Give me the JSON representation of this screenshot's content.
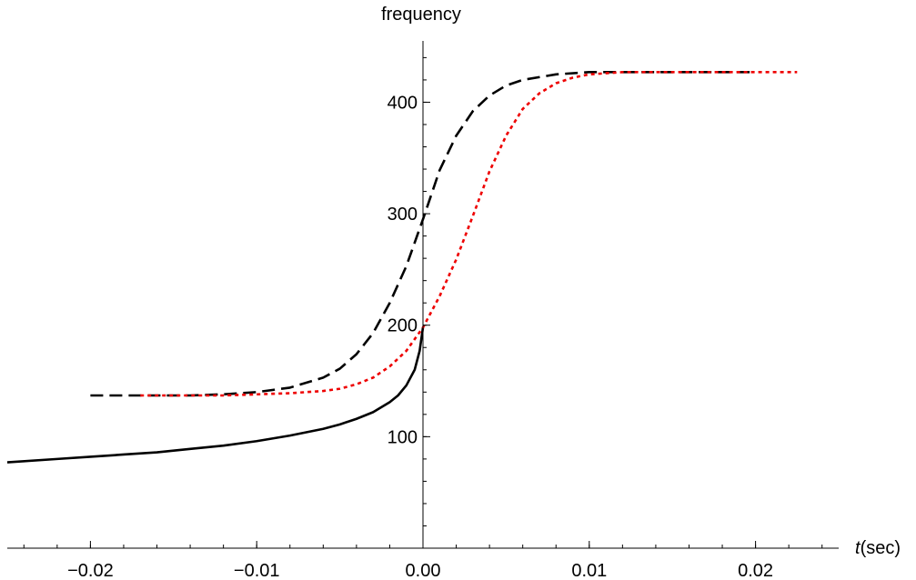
{
  "chart_data": {
    "type": "line",
    "ylabel": "frequency",
    "xlabel": {
      "var": "t",
      "unit": "(sec)"
    },
    "xlim": [
      -0.025,
      0.025
    ],
    "ylim": [
      0,
      455
    ],
    "grid": false,
    "x_ticks_major": [
      {
        "value": -0.02,
        "label": "−0.02"
      },
      {
        "value": -0.01,
        "label": "−0.01"
      },
      {
        "value": 0.0,
        "label": "0.00"
      },
      {
        "value": 0.01,
        "label": "0.01"
      },
      {
        "value": 0.02,
        "label": "0.02"
      }
    ],
    "y_ticks_major": [
      {
        "value": 100,
        "label": "100"
      },
      {
        "value": 200,
        "label": "200"
      },
      {
        "value": 300,
        "label": "300"
      },
      {
        "value": 400,
        "label": "400"
      }
    ],
    "series": [
      {
        "style": "solid",
        "color": "#000000",
        "x": [
          -0.025,
          -0.022,
          -0.02,
          -0.018,
          -0.016,
          -0.014,
          -0.012,
          -0.01,
          -0.008,
          -0.006,
          -0.005,
          -0.004,
          -0.003,
          -0.002,
          -0.0015,
          -0.001,
          -0.0005,
          -0.0002,
          0.0
        ],
        "y": [
          77,
          80,
          82,
          84,
          86,
          89,
          92,
          96,
          101,
          107,
          111,
          116,
          122,
          131,
          137,
          146,
          160,
          177,
          198
        ]
      },
      {
        "style": "dashed",
        "color": "#000000",
        "x": [
          -0.02,
          -0.016,
          -0.014,
          -0.012,
          -0.01,
          -0.008,
          -0.006,
          -0.005,
          -0.004,
          -0.003,
          -0.002,
          -0.001,
          0.0,
          0.001,
          0.002,
          0.003,
          0.004,
          0.005,
          0.006,
          0.008,
          0.01,
          0.015,
          0.02
        ],
        "y": [
          137,
          137,
          137,
          138,
          140,
          144,
          153,
          161,
          174,
          193,
          220,
          253,
          295,
          339,
          370,
          392,
          406,
          415,
          420,
          425,
          427,
          427,
          427
        ]
      },
      {
        "style": "dotted",
        "color": "#ee0000",
        "x": [
          -0.017,
          -0.015,
          -0.012,
          -0.01,
          -0.008,
          -0.006,
          -0.005,
          -0.004,
          -0.003,
          -0.002,
          -0.001,
          0.0,
          0.001,
          0.002,
          0.003,
          0.004,
          0.005,
          0.006,
          0.007,
          0.008,
          0.009,
          0.01,
          0.012,
          0.015,
          0.0225
        ],
        "y": [
          137,
          137,
          137,
          138,
          139,
          141,
          143,
          147,
          153,
          163,
          177,
          198,
          226,
          259,
          298,
          338,
          370,
          394,
          408,
          417,
          422,
          425,
          427,
          427,
          427
        ]
      }
    ]
  }
}
